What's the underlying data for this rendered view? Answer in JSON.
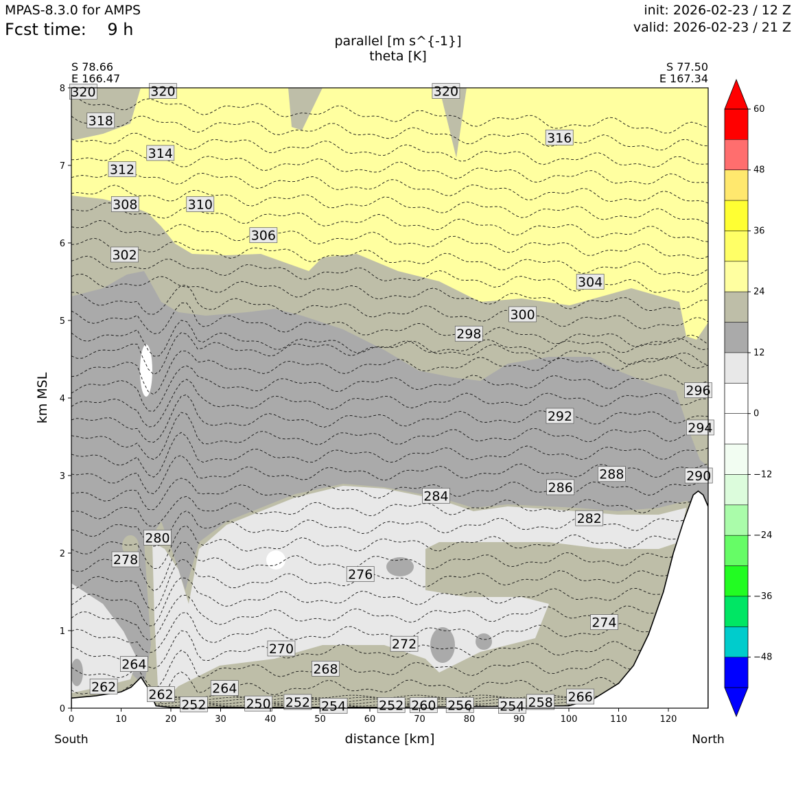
{
  "header": {
    "model": "MPAS-8.3.0 for AMPS",
    "fcst_time": "Fcst time:    9 h",
    "init": "init: 2026-02-23 / 12 Z",
    "valid": "valid: 2026-02-23 / 21 Z"
  },
  "coords": {
    "left_lat": "S 78.66",
    "left_lon": "E 166.47",
    "right_lat": "S 77.50",
    "right_lon": "E 167.34"
  },
  "chart_data": {
    "type": "heatmap",
    "title": "parallel [m s^{-1}]",
    "subtitle": "theta [K]",
    "xlabel": "distance [km]",
    "ylabel": "km MSL",
    "xlim": [
      0,
      128
    ],
    "ylim": [
      0,
      8
    ],
    "x_ticks": [
      "0",
      "10",
      "20",
      "30",
      "40",
      "50",
      "60",
      "70",
      "80",
      "90",
      "100",
      "110",
      "120"
    ],
    "y_ticks": [
      "0",
      "1",
      "2",
      "3",
      "4",
      "5",
      "6",
      "7",
      "8"
    ],
    "left_end": "South",
    "right_end": "North",
    "colorbar": {
      "ticks": [
        "60",
        "48",
        "36",
        "24",
        "12",
        "0",
        "−12",
        "−24",
        "−36",
        "−48"
      ],
      "bounds": [
        60,
        54,
        48,
        42,
        36,
        30,
        24,
        18,
        12,
        6,
        0,
        -6,
        -12,
        -18,
        -24,
        -30,
        -36,
        -42,
        -48,
        -54
      ],
      "colors": [
        "#ff0000",
        "#ff6e6e",
        "#ffe86e",
        "#ffff33",
        "#ffff66",
        "#ffffa0",
        "#bebea8",
        "#aaaaaa",
        "#e8e8e8",
        "#ffffff",
        "#ffffff",
        "#f2fdf2",
        "#dcfcdc",
        "#aafcaa",
        "#66fc66",
        "#22fc22",
        "#00e664",
        "#00cccc",
        "#0000ff"
      ],
      "over_color": "#ff0000",
      "under_color": "#0000ff"
    },
    "terrain_km": [
      [
        0,
        0.13
      ],
      [
        5,
        0.16
      ],
      [
        10,
        0.21
      ],
      [
        12,
        0.27
      ],
      [
        14,
        0.4
      ],
      [
        15.5,
        0.25
      ],
      [
        17,
        0.03
      ],
      [
        20,
        0.01
      ],
      [
        60,
        0.01
      ],
      [
        100,
        0.03
      ],
      [
        105,
        0.12
      ],
      [
        110,
        0.32
      ],
      [
        113,
        0.55
      ],
      [
        116,
        0.95
      ],
      [
        119,
        1.5
      ],
      [
        121,
        2.0
      ],
      [
        123,
        2.4
      ],
      [
        125,
        2.75
      ],
      [
        126,
        2.8
      ],
      [
        127,
        2.75
      ],
      [
        128,
        2.6
      ]
    ],
    "theta_contour_labels": [
      {
        "text": "320",
        "x": 2.4,
        "y": 7.95
      },
      {
        "text": "318",
        "x": 5.9,
        "y": 7.58
      },
      {
        "text": "320",
        "x": 18.4,
        "y": 7.96
      },
      {
        "text": "320",
        "x": 75.3,
        "y": 7.96
      },
      {
        "text": "316",
        "x": 98.1,
        "y": 7.36
      },
      {
        "text": "314",
        "x": 17.9,
        "y": 7.16
      },
      {
        "text": "312",
        "x": 10.2,
        "y": 6.95
      },
      {
        "text": "308",
        "x": 10.8,
        "y": 6.5
      },
      {
        "text": "310",
        "x": 25.9,
        "y": 6.5
      },
      {
        "text": "306",
        "x": 38.6,
        "y": 6.1
      },
      {
        "text": "302",
        "x": 10.7,
        "y": 5.85
      },
      {
        "text": "304",
        "x": 104.3,
        "y": 5.5
      },
      {
        "text": "300",
        "x": 90.7,
        "y": 5.08
      },
      {
        "text": "298",
        "x": 79.9,
        "y": 4.83
      },
      {
        "text": "296",
        "x": 126,
        "y": 4.1
      },
      {
        "text": "294",
        "x": 126.4,
        "y": 3.62
      },
      {
        "text": "292",
        "x": 98.2,
        "y": 3.77
      },
      {
        "text": "290",
        "x": 126.1,
        "y": 3.0
      },
      {
        "text": "288",
        "x": 108.6,
        "y": 3.02
      },
      {
        "text": "286",
        "x": 98.3,
        "y": 2.85
      },
      {
        "text": "284",
        "x": 73.3,
        "y": 2.74
      },
      {
        "text": "282",
        "x": 104.1,
        "y": 2.45
      },
      {
        "text": "280",
        "x": 17.3,
        "y": 2.2
      },
      {
        "text": "278",
        "x": 10.9,
        "y": 1.92
      },
      {
        "text": "276",
        "x": 58.1,
        "y": 1.73
      },
      {
        "text": "274",
        "x": 107.1,
        "y": 1.11
      },
      {
        "text": "272",
        "x": 66.9,
        "y": 0.83
      },
      {
        "text": "270",
        "x": 42.2,
        "y": 0.77
      },
      {
        "text": "268",
        "x": 51.1,
        "y": 0.51
      },
      {
        "text": "264",
        "x": 12.6,
        "y": 0.57
      },
      {
        "text": "262",
        "x": 6.5,
        "y": 0.28
      },
      {
        "text": "262",
        "x": 18.0,
        "y": 0.18
      },
      {
        "text": "264",
        "x": 30.8,
        "y": 0.26
      },
      {
        "text": "252",
        "x": 24.6,
        "y": 0.05
      },
      {
        "text": "250",
        "x": 37.6,
        "y": 0.06
      },
      {
        "text": "252",
        "x": 45.5,
        "y": 0.08
      },
      {
        "text": "254",
        "x": 52.7,
        "y": 0.03
      },
      {
        "text": "252",
        "x": 64.3,
        "y": 0.04
      },
      {
        "text": "260",
        "x": 70.8,
        "y": 0.04
      },
      {
        "text": "256",
        "x": 78.1,
        "y": 0.04
      },
      {
        "text": "254",
        "x": 88.6,
        "y": 0.03
      },
      {
        "text": "258",
        "x": 94.3,
        "y": 0.08
      },
      {
        "text": "266",
        "x": 102.3,
        "y": 0.15
      }
    ]
  }
}
